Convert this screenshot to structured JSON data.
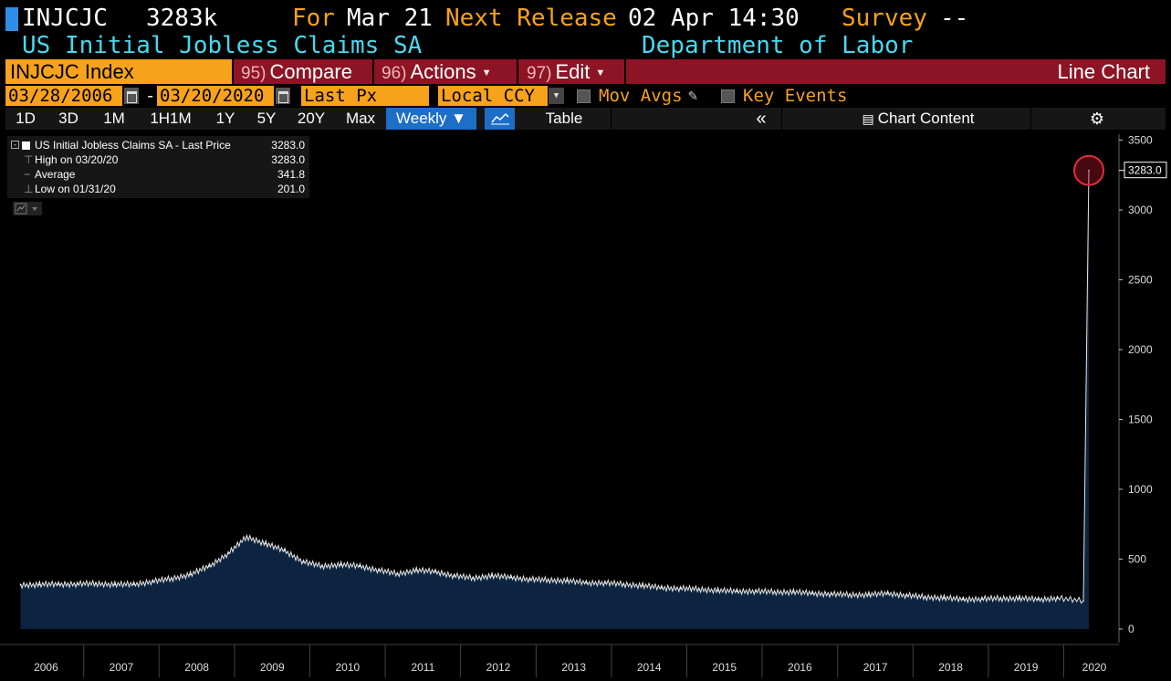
{
  "header": {
    "ticker": "INJCJC",
    "value": "3283k",
    "for_label": "For",
    "for_date": "Mar 21",
    "next_label": "Next Release",
    "next_date": "02 Apr 14:30",
    "survey_label": "Survey",
    "survey_value": "--",
    "name": "US Initial Jobless Claims SA",
    "source": "Department of Labor"
  },
  "toolbar": {
    "security": "INJCJC Index",
    "compare_num": "95)",
    "compare_label": "Compare",
    "actions_num": "96)",
    "actions_label": "Actions",
    "edit_num": "97)",
    "edit_label": "Edit",
    "chart_type": "Line Chart"
  },
  "options": {
    "start_date": "03/28/2006",
    "date_sep": "-",
    "end_date": "03/20/2020",
    "field": "Last Px",
    "currency": "Local CCY",
    "mov_avgs": "Mov Avgs",
    "key_events": "Key Events"
  },
  "periods": [
    "1D",
    "3D",
    "1M",
    "1H1M",
    "1Y",
    "5Y",
    "20Y",
    "Max"
  ],
  "frequency": "Weekly ▼",
  "table_label": "Table",
  "chart_content_label": "Chart Content",
  "legend": {
    "series": "US Initial Jobless Claims SA - Last Price",
    "series_value": "3283.0",
    "high_label": "High on 03/20/20",
    "high_value": "3283.0",
    "avg_label": "Average",
    "avg_value": "341.8",
    "low_label": "Low on 01/31/20",
    "low_value": "201.0"
  },
  "icons": {
    "calendar": "calendar-icon",
    "pencil": "pencil-icon",
    "collapse": "double-chevron-left-icon",
    "chart_content": "chart-content-icon",
    "settings": "gear-icon",
    "line_chart": "line-chart-icon"
  },
  "colors": {
    "accent_orange": "#f7a21b",
    "toolbar_red": "#8c1425",
    "title_cyan": "#47d8f0",
    "selected_blue": "#1d6ec7",
    "area_fill": "#0c2440",
    "highlight_circle": "#c8192e"
  },
  "chart_data": {
    "type": "area",
    "frequency": "Weekly",
    "x_ticks": [
      "2006",
      "2007",
      "2008",
      "2009",
      "2010",
      "2011",
      "2012",
      "2013",
      "2014",
      "2015",
      "2016",
      "2017",
      "2018",
      "2019",
      "2020"
    ],
    "ylim": [
      -100,
      3600
    ],
    "y_ticks": [
      0,
      500,
      1000,
      1500,
      2000,
      2500,
      3000,
      3500
    ],
    "last_value_label": "3283.0",
    "series": [
      {
        "name": "US Initial Jobless Claims SA - Last Price",
        "x": [
          "2006-03",
          "2006-06",
          "2006-09",
          "2006-12",
          "2007-03",
          "2007-06",
          "2007-09",
          "2007-12",
          "2008-03",
          "2008-06",
          "2008-09",
          "2008-12",
          "2009-03",
          "2009-06",
          "2009-09",
          "2009-12",
          "2010-03",
          "2010-06",
          "2010-09",
          "2010-12",
          "2011-03",
          "2011-06",
          "2011-09",
          "2011-12",
          "2012-03",
          "2012-06",
          "2012-09",
          "2012-12",
          "2013-03",
          "2013-06",
          "2013-09",
          "2013-12",
          "2014-03",
          "2014-06",
          "2014-09",
          "2014-12",
          "2015-03",
          "2015-06",
          "2015-09",
          "2015-12",
          "2016-03",
          "2016-06",
          "2016-09",
          "2016-12",
          "2017-03",
          "2017-06",
          "2017-09",
          "2017-12",
          "2018-03",
          "2018-06",
          "2018-09",
          "2018-12",
          "2019-03",
          "2019-06",
          "2019-09",
          "2019-12",
          "2020-01",
          "2020-03"
        ],
        "y": [
          315,
          318,
          320,
          322,
          325,
          318,
          320,
          340,
          360,
          390,
          450,
          540,
          660,
          610,
          560,
          480,
          450,
          460,
          450,
          420,
          395,
          420,
          410,
          380,
          365,
          380,
          370,
          355,
          350,
          345,
          330,
          330,
          320,
          310,
          295,
          290,
          285,
          275,
          270,
          270,
          265,
          265,
          255,
          250,
          245,
          245,
          255,
          240,
          228,
          222,
          212,
          215,
          218,
          218,
          212,
          220,
          201,
          3283
        ]
      }
    ]
  }
}
